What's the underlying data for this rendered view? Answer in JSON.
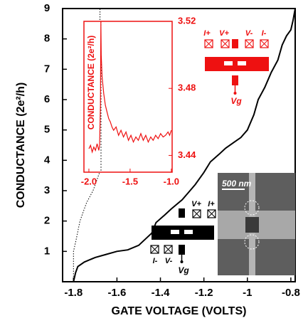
{
  "chart_data": [
    {
      "type": "line",
      "xlabel": "GATE VOLTAGE (VOLTS)",
      "ylabel": "CONDUCTANCE (2e²/h)",
      "xlim": [
        -1.85,
        -0.78
      ],
      "ylim": [
        0,
        9
      ],
      "xticks": [
        -1.8,
        -1.6,
        -1.4,
        -1.2,
        -1,
        -0.8
      ],
      "yticks": [
        1,
        2,
        3,
        4,
        5,
        6,
        7,
        8,
        9
      ],
      "series": [
        {
          "color": "#000000",
          "style": "solid",
          "x": [
            -1.8,
            -1.79,
            -1.78,
            -1.75,
            -1.7,
            -1.65,
            -1.6,
            -1.55,
            -1.5,
            -1.47,
            -1.44,
            -1.42,
            -1.38,
            -1.35,
            -1.3,
            -1.27,
            -1.24,
            -1.2,
            -1.17,
            -1.13,
            -1.1,
            -1.06,
            -1.03,
            -1.0,
            -0.97,
            -0.95,
            -0.92,
            -0.89,
            -0.86,
            -0.84,
            -0.82,
            -0.8,
            -0.79,
            -0.78
          ],
          "values": [
            0,
            0.3,
            0.5,
            0.65,
            0.8,
            0.9,
            1.0,
            1.05,
            1.2,
            1.4,
            1.6,
            1.95,
            2.2,
            2.4,
            2.7,
            2.95,
            3.2,
            3.6,
            3.95,
            4.2,
            4.4,
            4.6,
            4.75,
            5.0,
            5.5,
            6.0,
            6.4,
            6.9,
            7.3,
            7.8,
            8.1,
            8.3,
            8.6,
            9.0
          ]
        },
        {
          "color": "#000000",
          "style": "dotted",
          "x": [
            -1.8,
            -1.8,
            -1.79,
            -1.77,
            -1.74,
            -1.71,
            -1.69,
            -1.68,
            -1.678
          ],
          "values": [
            0,
            1.0,
            1.3,
            2.0,
            2.6,
            3.0,
            3.4,
            3.6,
            9.0
          ]
        }
      ],
      "annotations": [
        "500 nm",
        "I+",
        "V+",
        "V-",
        "I-",
        "Vg",
        "V+",
        "I+",
        "I-",
        "V-",
        "Vg"
      ]
    },
    {
      "type": "line",
      "ylabel": "CONDUCTANCE (2e²/h)",
      "xlim": [
        -2.06,
        -0.99
      ],
      "y2lim": [
        3.43,
        3.52
      ],
      "xticks": [
        {
          "value": -2,
          "label": "-2.0"
        },
        -1.5,
        {
          "value": -1,
          "label": "-1.0"
        }
      ],
      "y2ticks": [
        3.44,
        3.48,
        3.52
      ],
      "color": "#ee1111",
      "series": [
        {
          "color": "#ee1111",
          "axis": "y2",
          "x": [
            -2.0,
            -1.98,
            -1.96,
            -1.94,
            -1.92,
            -1.9,
            -1.88,
            -1.87,
            -1.86,
            -1.855,
            -1.85,
            -1.84,
            -1.82,
            -1.8,
            -1.78,
            -1.76,
            -1.74,
            -1.72,
            -1.7,
            -1.67,
            -1.64,
            -1.61,
            -1.58,
            -1.55,
            -1.52,
            -1.49,
            -1.46,
            -1.43,
            -1.4,
            -1.37,
            -1.34,
            -1.31,
            -1.28,
            -1.25,
            -1.22,
            -1.19,
            -1.16,
            -1.13,
            -1.1,
            -1.07,
            -1.04,
            -1.02,
            -1.0
          ],
          "values": [
            3.444,
            3.446,
            3.442,
            3.445,
            3.443,
            3.447,
            3.443,
            3.446,
            3.47,
            3.52,
            3.5,
            3.487,
            3.477,
            3.47,
            3.466,
            3.462,
            3.46,
            3.457,
            3.455,
            3.457,
            3.452,
            3.455,
            3.451,
            3.454,
            3.449,
            3.452,
            3.448,
            3.451,
            3.449,
            3.453,
            3.449,
            3.452,
            3.448,
            3.451,
            3.449,
            3.452,
            3.45,
            3.453,
            3.451,
            3.452,
            3.454,
            3.452,
            3.455
          ]
        }
      ]
    }
  ]
}
